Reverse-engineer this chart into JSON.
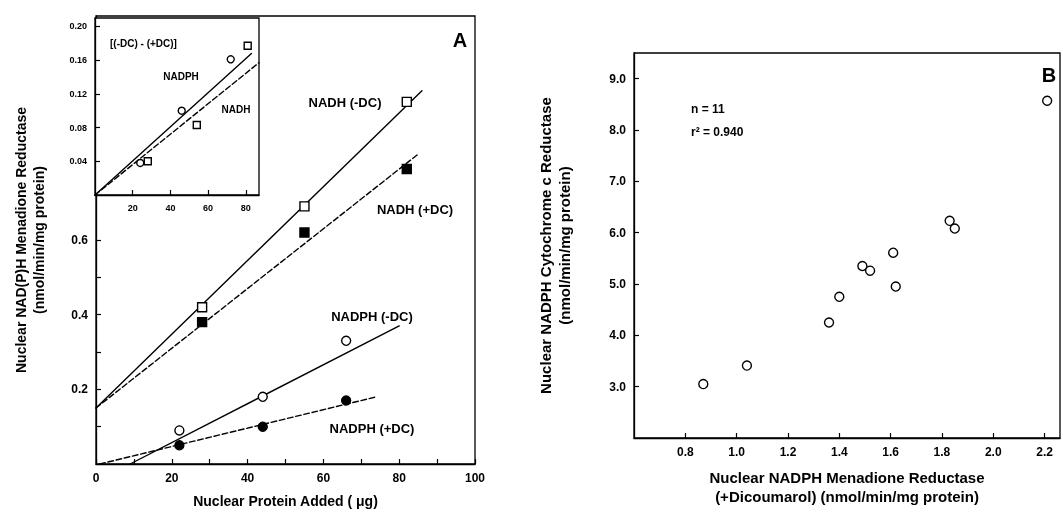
{
  "chart_data": [
    {
      "type": "scatter",
      "xlabel": "Nuclear Protein Added ( μg)",
      "ylabel": "Nuclear NAD(P)H Menadione Reductase\n(nmol/min/mg protein)",
      "xlim": [
        0,
        100
      ],
      "ylim": [
        0,
        1.2
      ],
      "xticks": [
        0,
        {
          "value": 10,
          "label": null
        },
        20,
        {
          "value": 30,
          "label": null
        },
        40,
        {
          "value": 50,
          "label": null
        },
        60,
        {
          "value": 70,
          "label": null
        },
        80,
        {
          "value": 90,
          "label": null
        },
        100
      ],
      "yticks": [
        {
          "value": 0.1,
          "label": null
        },
        0.2,
        {
          "value": 0.3,
          "label": null
        },
        0.4,
        {
          "value": 0.5,
          "label": null
        },
        0.6
      ],
      "series": [
        {
          "type": "scatter",
          "marker": "square",
          "color": "#ffffff",
          "x": [
            28,
            55,
            82
          ],
          "values": [
            0.42,
            0.69,
            0.97
          ]
        },
        {
          "type": "line",
          "name": "NADH (-DC)",
          "marker": "none",
          "line_style": "solid",
          "color": "#000000",
          "x": [
            0,
            86
          ],
          "values": [
            0.15,
            1.0
          ]
        },
        {
          "type": "scatter",
          "marker": "square",
          "color": "#000000",
          "x": [
            28,
            55,
            82
          ],
          "values": [
            0.38,
            0.62,
            0.79
          ]
        },
        {
          "type": "line",
          "name": "NADH (+DC)",
          "marker": "none",
          "line_style": "dashed",
          "color": "#000000",
          "x": [
            0,
            85
          ],
          "values": [
            0.15,
            0.83
          ]
        },
        {
          "type": "scatter",
          "marker": "circle",
          "color": "#ffffff",
          "x": [
            22,
            44,
            66
          ],
          "values": [
            0.09,
            0.18,
            0.33
          ]
        },
        {
          "type": "line",
          "name": "NADPH (-DC)",
          "marker": "none",
          "line_style": "solid",
          "color": "#000000",
          "x": [
            9,
            80
          ],
          "values": [
            0,
            0.37
          ]
        },
        {
          "type": "scatter",
          "marker": "circle",
          "color": "#000000",
          "x": [
            22,
            44,
            66
          ],
          "values": [
            0.05,
            0.1,
            0.17
          ]
        },
        {
          "type": "line",
          "name": "NADPH (+DC)",
          "marker": "none",
          "line_style": "dashed",
          "color": "#000000",
          "x": [
            1,
            74
          ],
          "values": [
            0,
            0.18
          ]
        }
      ],
      "annotations": [
        "A"
      ]
    },
    {
      "type": "scatter",
      "xlim": [
        0,
        87
      ],
      "ylim": [
        0,
        0.21
      ],
      "xticks": [
        20,
        40,
        60,
        80
      ],
      "yticks": [
        0.04,
        0.08,
        0.12,
        0.16,
        {
          "value": 0.2,
          "label": "0.20"
        }
      ],
      "series": [
        {
          "type": "scatter",
          "marker": "circle",
          "color": "#ffffff",
          "x": [
            24,
            46,
            72
          ],
          "values": [
            0.038,
            0.1,
            0.161
          ]
        },
        {
          "type": "line",
          "name": "NADPH",
          "marker": "none",
          "line_style": "solid",
          "color": "#000000",
          "x": [
            0,
            83
          ],
          "values": [
            0,
            0.168
          ]
        },
        {
          "type": "scatter",
          "marker": "square",
          "color": "#ffffff",
          "x": [
            28,
            54,
            81
          ],
          "values": [
            0.04,
            0.083,
            0.177
          ]
        },
        {
          "type": "line",
          "name": "NADH",
          "marker": "none",
          "line_style": "dashed",
          "color": "#000000",
          "x": [
            0,
            87
          ],
          "values": [
            0,
            0.157
          ]
        }
      ],
      "annotations": [
        "[(-DC) - (+DC)]"
      ]
    },
    {
      "type": "scatter",
      "marker": "circle",
      "color": "#ffffff",
      "xlabel": "Nuclear NADPH Menadione Reductase\n(+Dicoumarol) (nmol/min/mg protein)",
      "ylabel": "Nuclear NADPH Cytochrome c Reductase\n(nmol/min/mg protein)",
      "xlim": [
        0.6,
        2.26
      ],
      "ylim": [
        2,
        9.5
      ],
      "xticks": [
        0.8,
        {
          "value": 1,
          "label": "1.0"
        },
        1.2,
        1.4,
        1.6,
        1.8,
        {
          "value": 2,
          "label": "2.0"
        },
        2.2
      ],
      "yticks": [
        {
          "value": 3,
          "label": "3.0"
        },
        {
          "value": 4,
          "label": "4.0"
        },
        {
          "value": 5,
          "label": "5.0"
        },
        {
          "value": 6,
          "label": "6.0"
        },
        {
          "value": 7,
          "label": "7.0"
        },
        {
          "value": 8,
          "label": "8.0"
        },
        {
          "value": 9,
          "label": "9.0"
        }
      ],
      "x": [
        0.87,
        1.04,
        1.36,
        1.4,
        1.49,
        1.52,
        1.61,
        1.62,
        1.83,
        1.85,
        2.21
      ],
      "values": [
        3.05,
        3.41,
        4.25,
        4.75,
        5.35,
        5.26,
        5.61,
        4.95,
        6.23,
        6.08,
        8.57
      ],
      "annotations": [
        "n = 11",
        "r² = 0.940",
        "B"
      ]
    }
  ]
}
